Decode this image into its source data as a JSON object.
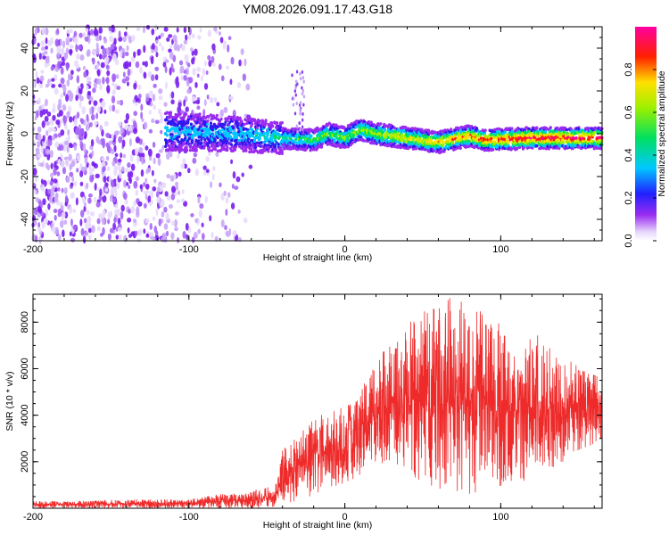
{
  "title": "YM08.2026.091.17.43.G18",
  "colors": {
    "snr_line": "#ee2a2a",
    "frame": "#000000",
    "background": "#ffffff"
  },
  "chart_data": [
    {
      "type": "heatmap",
      "name": "spectrogram",
      "xlabel": "Height of straight line (km)",
      "ylabel": "Frequency (Hz)",
      "xlim": [
        -200,
        165
      ],
      "ylim": [
        -50,
        50
      ],
      "x_ticks": [
        -200,
        -100,
        0,
        100
      ],
      "x_tick_labels": [
        "-200",
        "-100",
        "0",
        "100"
      ],
      "y_ticks": [
        -40,
        -20,
        0,
        20,
        40
      ],
      "y_tick_labels": [
        "-40",
        "-20",
        "0",
        "20",
        "40"
      ],
      "colorbar": {
        "label": "Normalized spectral amplitude",
        "range": [
          0,
          1
        ],
        "ticks": [
          0,
          0.2,
          0.4,
          0.6,
          0.8
        ],
        "tick_labels": [
          "0.0",
          "0.2",
          "0.4",
          "0.6",
          "0.8"
        ],
        "colormap": "rainbow (white → violet → blue → cyan → green → yellow → red → magenta)"
      },
      "description_points": {
        "noise_region_x": [
          -200,
          -60
        ],
        "signal_onset_x": -110,
        "signal_center_track": [
          {
            "x": -110,
            "y": 1
          },
          {
            "x": -70,
            "y": 0
          },
          {
            "x": -40,
            "y": -2
          },
          {
            "x": -20,
            "y": -3
          },
          {
            "x": -10,
            "y": 0
          },
          {
            "x": 0,
            "y": -2
          },
          {
            "x": 10,
            "y": 2
          },
          {
            "x": 20,
            "y": 0
          },
          {
            "x": 40,
            "y": -2
          },
          {
            "x": 60,
            "y": -4
          },
          {
            "x": 80,
            "y": -1
          },
          {
            "x": 90,
            "y": -3
          },
          {
            "x": 120,
            "y": -2
          },
          {
            "x": 165,
            "y": -2
          }
        ]
      }
    },
    {
      "type": "line",
      "name": "snr",
      "xlabel": "Height of straight line (km)",
      "ylabel": "SNR (10 * v/v)",
      "xlim": [
        -200,
        165
      ],
      "ylim": [
        0,
        9200
      ],
      "x_ticks": [
        -200,
        -100,
        0,
        100
      ],
      "x_tick_labels": [
        "-200",
        "-100",
        "0",
        "100"
      ],
      "y_ticks": [
        2000,
        4000,
        6000,
        8000
      ],
      "y_tick_labels": [
        "2000",
        "4000",
        "6000",
        "8000"
      ],
      "envelope": {
        "x": [
          -200,
          -150,
          -100,
          -80,
          -60,
          -45,
          -40,
          -30,
          -20,
          -10,
          0,
          10,
          20,
          30,
          50,
          70,
          90,
          110,
          130,
          150,
          165
        ],
        "low": [
          0,
          0,
          0,
          0,
          0,
          50,
          200,
          300,
          500,
          800,
          1000,
          1400,
          1800,
          2000,
          1000,
          500,
          600,
          1000,
          1600,
          2400,
          3000
        ],
        "high": [
          300,
          350,
          400,
          600,
          700,
          1000,
          2500,
          3400,
          3800,
          3900,
          4200,
          5000,
          6500,
          7000,
          8500,
          8800,
          8000,
          7500,
          7000,
          6200,
          5600
        ]
      }
    }
  ]
}
